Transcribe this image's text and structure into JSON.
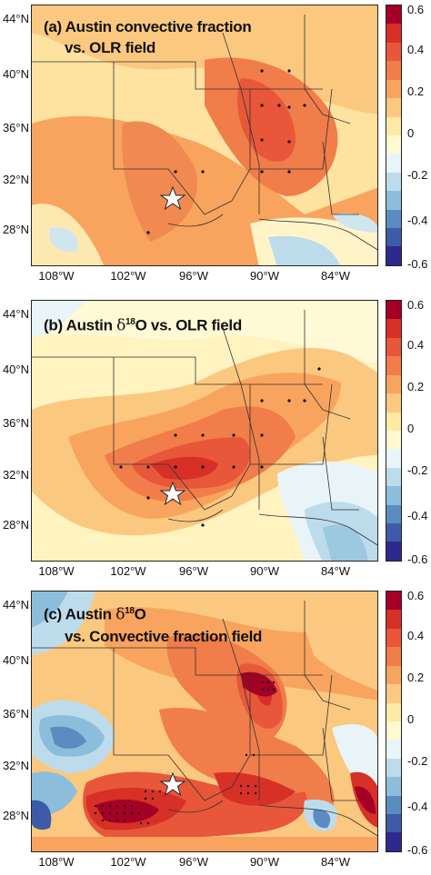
{
  "panels": [
    {
      "title_line1": "(a) Austin convective fraction",
      "title_line2": "vs.  OLR field"
    },
    {
      "title_line1": "(b) Austin ",
      "delta": "δ",
      "sup": "18",
      "title_rest": "O vs.  OLR field"
    },
    {
      "title_line1": "(c) Austin ",
      "delta": "δ",
      "sup": "18",
      "title_rest": "O",
      "title_line2": "vs.  Convective fraction field"
    }
  ],
  "lat_labels": [
    "44°N",
    "40°N",
    "36°N",
    "32°N",
    "28°N"
  ],
  "lon_labels": [
    "108°W",
    "102°W",
    "96°W",
    "90°W",
    "84°W"
  ],
  "colorbar": {
    "labels": [
      "0.6",
      "0.4",
      "0.2",
      "0",
      "-0.2",
      "-0.4",
      "-0.6"
    ],
    "colors": [
      "#a50026",
      "#d73027",
      "#e8573a",
      "#f07d4a",
      "#f8a45e",
      "#fdc982",
      "#feeaa4",
      "#fff9d0",
      "#e8f4f8",
      "#bcdcec",
      "#8cbedc",
      "#5a8cc2",
      "#3d5ba8",
      "#2c2a8c"
    ]
  },
  "station_marker": "star"
}
